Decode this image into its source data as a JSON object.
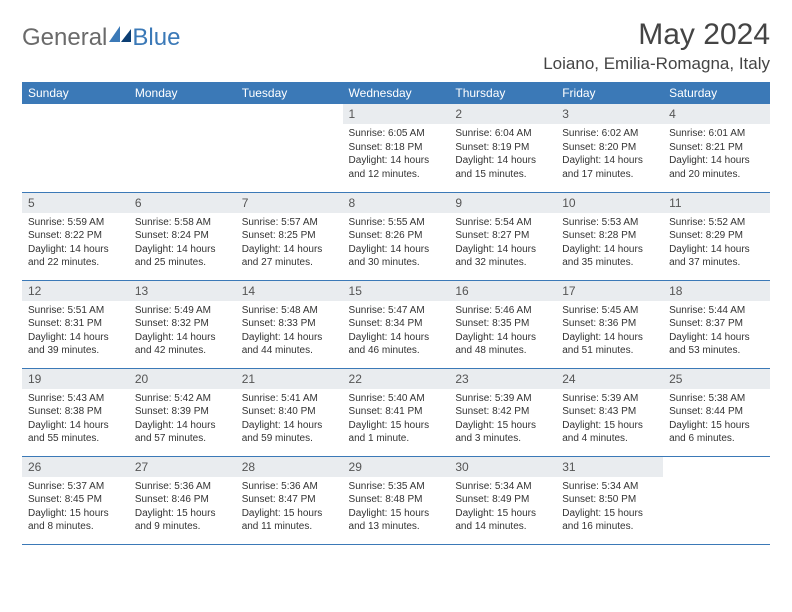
{
  "brand": {
    "part1": "General",
    "part2": "Blue"
  },
  "title": "May 2024",
  "location": "Loiano, Emilia-Romagna, Italy",
  "colors": {
    "header_bg": "#3b79b7",
    "header_text": "#ffffff",
    "daynum_bg": "#e9ecef",
    "border": "#3b79b7",
    "text": "#333333",
    "logo_gray": "#6a6a6a",
    "logo_blue": "#3b79b7"
  },
  "weekdays": [
    "Sunday",
    "Monday",
    "Tuesday",
    "Wednesday",
    "Thursday",
    "Friday",
    "Saturday"
  ],
  "weeks": [
    [
      {
        "n": "",
        "sr": "",
        "ss": "",
        "dl": ""
      },
      {
        "n": "",
        "sr": "",
        "ss": "",
        "dl": ""
      },
      {
        "n": "",
        "sr": "",
        "ss": "",
        "dl": ""
      },
      {
        "n": "1",
        "sr": "Sunrise: 6:05 AM",
        "ss": "Sunset: 8:18 PM",
        "dl": "Daylight: 14 hours and 12 minutes."
      },
      {
        "n": "2",
        "sr": "Sunrise: 6:04 AM",
        "ss": "Sunset: 8:19 PM",
        "dl": "Daylight: 14 hours and 15 minutes."
      },
      {
        "n": "3",
        "sr": "Sunrise: 6:02 AM",
        "ss": "Sunset: 8:20 PM",
        "dl": "Daylight: 14 hours and 17 minutes."
      },
      {
        "n": "4",
        "sr": "Sunrise: 6:01 AM",
        "ss": "Sunset: 8:21 PM",
        "dl": "Daylight: 14 hours and 20 minutes."
      }
    ],
    [
      {
        "n": "5",
        "sr": "Sunrise: 5:59 AM",
        "ss": "Sunset: 8:22 PM",
        "dl": "Daylight: 14 hours and 22 minutes."
      },
      {
        "n": "6",
        "sr": "Sunrise: 5:58 AM",
        "ss": "Sunset: 8:24 PM",
        "dl": "Daylight: 14 hours and 25 minutes."
      },
      {
        "n": "7",
        "sr": "Sunrise: 5:57 AM",
        "ss": "Sunset: 8:25 PM",
        "dl": "Daylight: 14 hours and 27 minutes."
      },
      {
        "n": "8",
        "sr": "Sunrise: 5:55 AM",
        "ss": "Sunset: 8:26 PM",
        "dl": "Daylight: 14 hours and 30 minutes."
      },
      {
        "n": "9",
        "sr": "Sunrise: 5:54 AM",
        "ss": "Sunset: 8:27 PM",
        "dl": "Daylight: 14 hours and 32 minutes."
      },
      {
        "n": "10",
        "sr": "Sunrise: 5:53 AM",
        "ss": "Sunset: 8:28 PM",
        "dl": "Daylight: 14 hours and 35 minutes."
      },
      {
        "n": "11",
        "sr": "Sunrise: 5:52 AM",
        "ss": "Sunset: 8:29 PM",
        "dl": "Daylight: 14 hours and 37 minutes."
      }
    ],
    [
      {
        "n": "12",
        "sr": "Sunrise: 5:51 AM",
        "ss": "Sunset: 8:31 PM",
        "dl": "Daylight: 14 hours and 39 minutes."
      },
      {
        "n": "13",
        "sr": "Sunrise: 5:49 AM",
        "ss": "Sunset: 8:32 PM",
        "dl": "Daylight: 14 hours and 42 minutes."
      },
      {
        "n": "14",
        "sr": "Sunrise: 5:48 AM",
        "ss": "Sunset: 8:33 PM",
        "dl": "Daylight: 14 hours and 44 minutes."
      },
      {
        "n": "15",
        "sr": "Sunrise: 5:47 AM",
        "ss": "Sunset: 8:34 PM",
        "dl": "Daylight: 14 hours and 46 minutes."
      },
      {
        "n": "16",
        "sr": "Sunrise: 5:46 AM",
        "ss": "Sunset: 8:35 PM",
        "dl": "Daylight: 14 hours and 48 minutes."
      },
      {
        "n": "17",
        "sr": "Sunrise: 5:45 AM",
        "ss": "Sunset: 8:36 PM",
        "dl": "Daylight: 14 hours and 51 minutes."
      },
      {
        "n": "18",
        "sr": "Sunrise: 5:44 AM",
        "ss": "Sunset: 8:37 PM",
        "dl": "Daylight: 14 hours and 53 minutes."
      }
    ],
    [
      {
        "n": "19",
        "sr": "Sunrise: 5:43 AM",
        "ss": "Sunset: 8:38 PM",
        "dl": "Daylight: 14 hours and 55 minutes."
      },
      {
        "n": "20",
        "sr": "Sunrise: 5:42 AM",
        "ss": "Sunset: 8:39 PM",
        "dl": "Daylight: 14 hours and 57 minutes."
      },
      {
        "n": "21",
        "sr": "Sunrise: 5:41 AM",
        "ss": "Sunset: 8:40 PM",
        "dl": "Daylight: 14 hours and 59 minutes."
      },
      {
        "n": "22",
        "sr": "Sunrise: 5:40 AM",
        "ss": "Sunset: 8:41 PM",
        "dl": "Daylight: 15 hours and 1 minute."
      },
      {
        "n": "23",
        "sr": "Sunrise: 5:39 AM",
        "ss": "Sunset: 8:42 PM",
        "dl": "Daylight: 15 hours and 3 minutes."
      },
      {
        "n": "24",
        "sr": "Sunrise: 5:39 AM",
        "ss": "Sunset: 8:43 PM",
        "dl": "Daylight: 15 hours and 4 minutes."
      },
      {
        "n": "25",
        "sr": "Sunrise: 5:38 AM",
        "ss": "Sunset: 8:44 PM",
        "dl": "Daylight: 15 hours and 6 minutes."
      }
    ],
    [
      {
        "n": "26",
        "sr": "Sunrise: 5:37 AM",
        "ss": "Sunset: 8:45 PM",
        "dl": "Daylight: 15 hours and 8 minutes."
      },
      {
        "n": "27",
        "sr": "Sunrise: 5:36 AM",
        "ss": "Sunset: 8:46 PM",
        "dl": "Daylight: 15 hours and 9 minutes."
      },
      {
        "n": "28",
        "sr": "Sunrise: 5:36 AM",
        "ss": "Sunset: 8:47 PM",
        "dl": "Daylight: 15 hours and 11 minutes."
      },
      {
        "n": "29",
        "sr": "Sunrise: 5:35 AM",
        "ss": "Sunset: 8:48 PM",
        "dl": "Daylight: 15 hours and 13 minutes."
      },
      {
        "n": "30",
        "sr": "Sunrise: 5:34 AM",
        "ss": "Sunset: 8:49 PM",
        "dl": "Daylight: 15 hours and 14 minutes."
      },
      {
        "n": "31",
        "sr": "Sunrise: 5:34 AM",
        "ss": "Sunset: 8:50 PM",
        "dl": "Daylight: 15 hours and 16 minutes."
      },
      {
        "n": "",
        "sr": "",
        "ss": "",
        "dl": ""
      }
    ]
  ]
}
